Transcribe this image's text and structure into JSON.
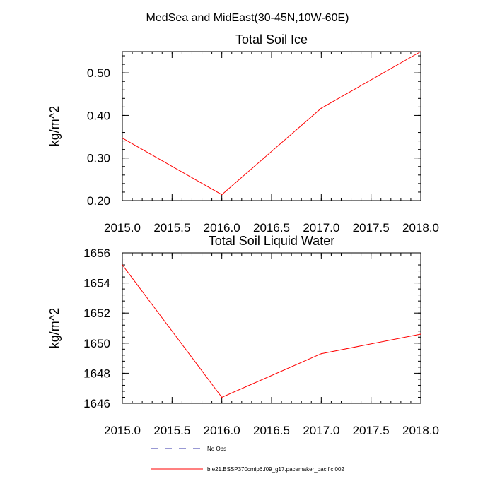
{
  "figure": {
    "suptitle": "MedSea and MidEast(30-45N,10W-60E)"
  },
  "chart_data": [
    {
      "type": "line",
      "title": "Total Soil Ice",
      "xlabel": "",
      "ylabel": "kg/m^2",
      "xlim": [
        2015.0,
        2018.0
      ],
      "ylim": [
        0.2,
        0.55
      ],
      "x_ticks": [
        2015.0,
        2015.5,
        2016.0,
        2016.5,
        2017.0,
        2017.5,
        2018.0
      ],
      "x_tick_labels": [
        "2015.0",
        "2015.5",
        "2016.0",
        "2016.5",
        "2017.0",
        "2017.5",
        "2018.0"
      ],
      "y_ticks": [
        0.2,
        0.3,
        0.4,
        0.5
      ],
      "y_tick_labels": [
        "0.20",
        "0.30",
        "0.40",
        "0.50"
      ],
      "x_minor_step": 0.1,
      "y_minor_step": 0.02,
      "series": [
        {
          "name": "b.e21.BSSP370cmip6.f09_g17.pacemaker_pacific.002",
          "color": "#ff0000",
          "x": [
            2015.0,
            2016.0,
            2017.0,
            2018.0
          ],
          "values": [
            0.347,
            0.214,
            0.417,
            0.55
          ]
        }
      ]
    },
    {
      "type": "line",
      "title": "Total Soil Liquid Water",
      "xlabel": "",
      "ylabel": "kg/m^2",
      "xlim": [
        2015.0,
        2018.0
      ],
      "ylim": [
        1646,
        1656
      ],
      "x_ticks": [
        2015.0,
        2015.5,
        2016.0,
        2016.5,
        2017.0,
        2017.5,
        2018.0
      ],
      "x_tick_labels": [
        "2015.0",
        "2015.5",
        "2016.0",
        "2016.5",
        "2017.0",
        "2017.5",
        "2018.0"
      ],
      "y_ticks": [
        1646,
        1648,
        1650,
        1652,
        1654,
        1656
      ],
      "y_tick_labels": [
        "1646",
        "1648",
        "1650",
        "1652",
        "1654",
        "1656"
      ],
      "x_minor_step": 0.1,
      "y_minor_step": 0.4,
      "series": [
        {
          "name": "b.e21.BSSP370cmip6.f09_g17.pacemaker_pacific.002",
          "color": "#ff0000",
          "x": [
            2015.0,
            2016.0,
            2017.0,
            2018.0
          ],
          "values": [
            1655.2,
            1646.4,
            1649.3,
            1650.6
          ]
        }
      ]
    }
  ],
  "legend": {
    "entries": [
      {
        "label": "No Obs",
        "color": "#3333aa",
        "style": "dashed"
      },
      {
        "label": "b.e21.BSSP370cmip6.f09_g17.pacemaker_pacific.002",
        "color": "#ff0000",
        "style": "solid"
      }
    ]
  }
}
